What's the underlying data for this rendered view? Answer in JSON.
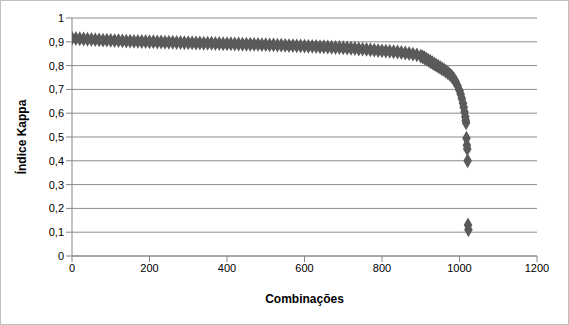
{
  "chart_data": {
    "type": "scatter",
    "x_label": "Combinações",
    "y_label": "Índice Kappa",
    "color": "#5a5a5a",
    "marker": "diamond",
    "grid": true,
    "xlim": [
      0,
      1200
    ],
    "xticks": [
      0,
      200,
      400,
      600,
      800,
      1000,
      1200
    ],
    "ylim": [
      0,
      1
    ],
    "yticks": [
      0,
      {
        "value": 0.1,
        "label": "0,1"
      },
      {
        "value": 0.2,
        "label": "0,2"
      },
      {
        "value": 0.3,
        "label": "0,3"
      },
      {
        "value": 0.4,
        "label": "0,4"
      },
      {
        "value": 0.5,
        "label": "0,5"
      },
      {
        "value": 0.6,
        "label": "0,6"
      },
      {
        "value": 0.7,
        "label": "0,7"
      },
      {
        "value": 0.8,
        "label": "0,8"
      },
      {
        "value": 0.9,
        "label": "0,9"
      },
      1
    ],
    "x": [
      0,
      10,
      20,
      30,
      40,
      50,
      60,
      70,
      80,
      90,
      100,
      110,
      120,
      130,
      140,
      150,
      160,
      170,
      180,
      190,
      200,
      210,
      220,
      230,
      240,
      250,
      260,
      270,
      280,
      290,
      300,
      310,
      320,
      330,
      340,
      350,
      360,
      370,
      380,
      390,
      400,
      410,
      420,
      430,
      440,
      450,
      460,
      470,
      480,
      490,
      500,
      510,
      520,
      530,
      540,
      550,
      560,
      570,
      580,
      590,
      600,
      610,
      620,
      630,
      640,
      650,
      660,
      670,
      680,
      690,
      700,
      710,
      720,
      730,
      740,
      750,
      760,
      770,
      780,
      790,
      800,
      810,
      820,
      830,
      840,
      850,
      860,
      870,
      880,
      890,
      900,
      905,
      910,
      915,
      920,
      925,
      930,
      935,
      940,
      945,
      950,
      955,
      960,
      965,
      970,
      975,
      980,
      985,
      990,
      995,
      1000,
      1003,
      1006,
      1009,
      1011,
      1013,
      1015,
      1016,
      1017,
      1018,
      1019,
      1020,
      1021,
      1022,
      1023
    ],
    "values": [
      0.915,
      0.914,
      0.913,
      0.912,
      0.911,
      0.91,
      0.909,
      0.908,
      0.907,
      0.907,
      0.906,
      0.905,
      0.905,
      0.904,
      0.903,
      0.903,
      0.902,
      0.902,
      0.901,
      0.901,
      0.9,
      0.9,
      0.899,
      0.899,
      0.898,
      0.898,
      0.898,
      0.897,
      0.897,
      0.896,
      0.896,
      0.896,
      0.895,
      0.895,
      0.894,
      0.894,
      0.894,
      0.893,
      0.893,
      0.892,
      0.892,
      0.892,
      0.891,
      0.891,
      0.89,
      0.89,
      0.89,
      0.889,
      0.889,
      0.888,
      0.888,
      0.887,
      0.887,
      0.886,
      0.886,
      0.885,
      0.884,
      0.884,
      0.883,
      0.883,
      0.882,
      0.881,
      0.881,
      0.88,
      0.879,
      0.879,
      0.878,
      0.877,
      0.876,
      0.876,
      0.875,
      0.874,
      0.873,
      0.872,
      0.87,
      0.869,
      0.868,
      0.866,
      0.865,
      0.863,
      0.862,
      0.861,
      0.86,
      0.858,
      0.857,
      0.855,
      0.853,
      0.851,
      0.848,
      0.845,
      0.84,
      0.836,
      0.832,
      0.827,
      0.822,
      0.817,
      0.812,
      0.807,
      0.802,
      0.797,
      0.792,
      0.787,
      0.782,
      0.776,
      0.77,
      0.763,
      0.755,
      0.745,
      0.732,
      0.715,
      0.695,
      0.68,
      0.662,
      0.642,
      0.625,
      0.605,
      0.585,
      0.57,
      0.56,
      0.495,
      0.465,
      0.45,
      0.4,
      0.13,
      0.11
    ]
  }
}
